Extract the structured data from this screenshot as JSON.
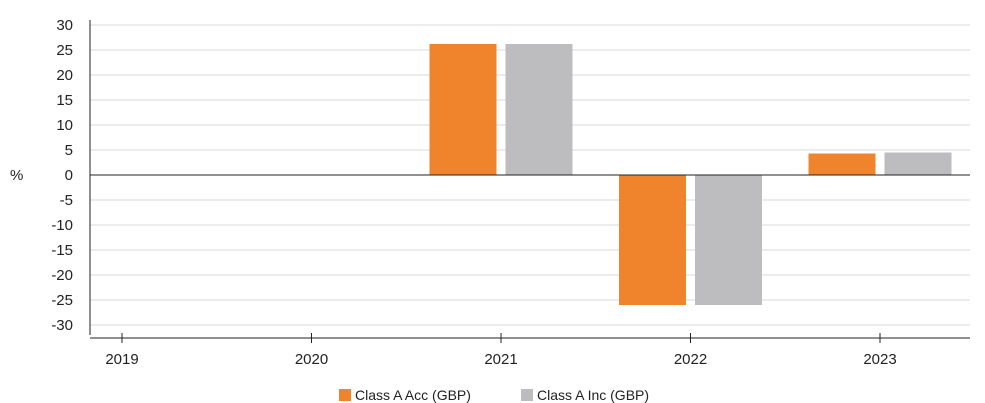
{
  "chart_data": {
    "type": "bar",
    "title": "",
    "xlabel": "",
    "ylabel": "%",
    "categories": [
      "2019",
      "2020",
      "2021",
      "2022",
      "2023"
    ],
    "series": [
      {
        "name": "Class A Acc (GBP)",
        "color": "#F0842C",
        "values": [
          null,
          null,
          26.2,
          -26.0,
          4.3
        ]
      },
      {
        "name": "Class A Inc (GBP)",
        "color": "#BDBDBF",
        "values": [
          null,
          null,
          26.2,
          -26.0,
          4.5
        ]
      }
    ],
    "ylim": [
      -30,
      30
    ],
    "yticks": [
      30,
      25,
      20,
      15,
      10,
      5,
      0,
      -5,
      -10,
      -15,
      -20,
      -25,
      -30
    ],
    "grid": true,
    "legend_position": "bottom-center"
  }
}
